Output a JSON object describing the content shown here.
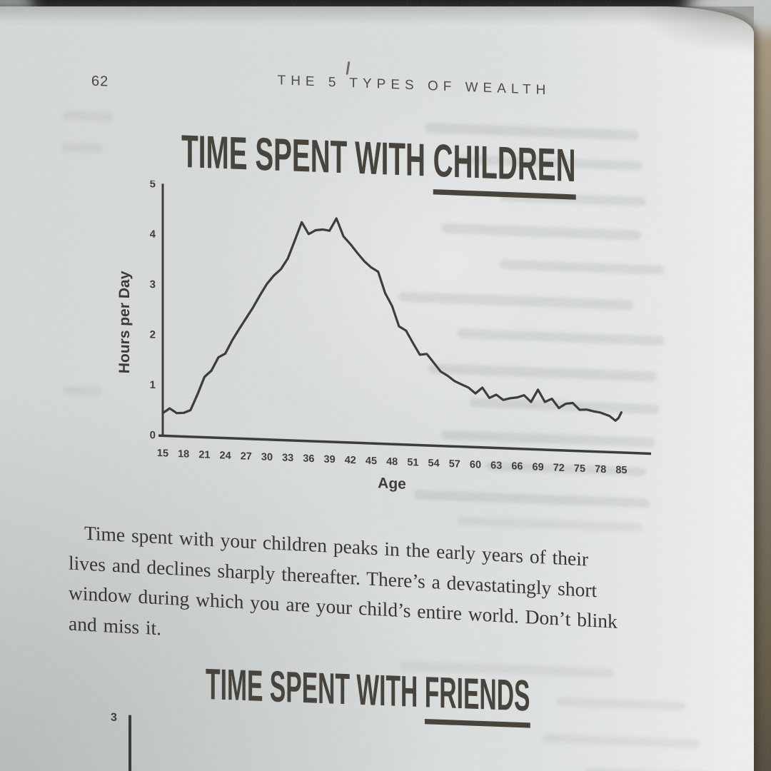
{
  "book": {
    "page_number": "62",
    "running_head": "THE 5 TYPES OF WEALTH"
  },
  "children_chart": {
    "title_prefix": "TIME SPENT WITH ",
    "title_underlined": "CHILDREN",
    "ylabel": "Hours per Day",
    "xlabel": "Age"
  },
  "paragraph": {
    "lines": [
      "Time spent with your children peaks in the early years of their",
      "lives and declines sharply thereafter. There’s a devastatingly short",
      "window during which you are your child’s entire world. Don’t blink",
      "and miss it."
    ],
    "full_text": "Time spent with your children peaks in the early years of their lives and declines sharply thereafter. There’s a devastatingly short window during which you are your child’s entire world. Don’t blink and miss it."
  },
  "friends_chart": {
    "title_prefix": "TIME SPENT WITH ",
    "title_underlined": "FRIENDS",
    "visible_ytick": "3"
  },
  "ink_color": "#35332e",
  "paper_color": "#dde1e0",
  "chart_data": [
    {
      "type": "line",
      "title": "TIME SPENT WITH CHILDREN",
      "xlabel": "Age",
      "ylabel": "Hours per Day",
      "ylim": [
        0,
        5
      ],
      "yticks": [
        0,
        1,
        2,
        3,
        4,
        5
      ],
      "xtick_labels": [
        15,
        18,
        21,
        24,
        27,
        30,
        33,
        36,
        39,
        42,
        45,
        48,
        51,
        54,
        57,
        60,
        63,
        66,
        69,
        72,
        75,
        78,
        85
      ],
      "grid": false,
      "legend": false,
      "series": [
        {
          "name": "Hours per day spent with children",
          "points": [
            [
              15,
              0.45
            ],
            [
              16,
              0.55
            ],
            [
              17,
              0.46
            ],
            [
              18,
              0.47
            ],
            [
              19,
              0.53
            ],
            [
              20,
              0.85
            ],
            [
              21,
              1.2
            ],
            [
              22,
              1.33
            ],
            [
              23,
              1.6
            ],
            [
              24,
              1.68
            ],
            [
              25,
              1.95
            ],
            [
              26,
              2.18
            ],
            [
              27,
              2.4
            ],
            [
              28,
              2.62
            ],
            [
              29,
              2.87
            ],
            [
              30,
              3.1
            ],
            [
              31,
              3.27
            ],
            [
              32,
              3.4
            ],
            [
              33,
              3.62
            ],
            [
              34,
              3.98
            ],
            [
              35,
              4.35
            ],
            [
              36,
              4.12
            ],
            [
              37,
              4.2
            ],
            [
              38,
              4.22
            ],
            [
              39,
              4.2
            ],
            [
              40,
              4.45
            ],
            [
              41,
              4.1
            ],
            [
              42,
              3.95
            ],
            [
              43,
              3.78
            ],
            [
              44,
              3.62
            ],
            [
              45,
              3.5
            ],
            [
              46,
              3.42
            ],
            [
              47,
              3.0
            ],
            [
              48,
              2.75
            ],
            [
              49,
              2.35
            ],
            [
              50,
              2.27
            ],
            [
              51,
              2.03
            ],
            [
              52,
              1.8
            ],
            [
              53,
              1.82
            ],
            [
              54,
              1.65
            ],
            [
              55,
              1.48
            ],
            [
              56,
              1.4
            ],
            [
              57,
              1.3
            ],
            [
              58,
              1.24
            ],
            [
              59,
              1.18
            ],
            [
              60,
              1.07
            ],
            [
              61,
              1.19
            ],
            [
              62,
              0.99
            ],
            [
              63,
              1.06
            ],
            [
              64,
              0.96
            ],
            [
              65,
              1.0
            ],
            [
              66,
              1.02
            ],
            [
              67,
              1.07
            ],
            [
              68,
              0.94
            ],
            [
              69,
              1.19
            ],
            [
              70,
              0.95
            ],
            [
              71,
              1.02
            ],
            [
              72,
              0.84
            ],
            [
              73,
              0.93
            ],
            [
              74,
              0.95
            ],
            [
              75,
              0.82
            ],
            [
              76,
              0.83
            ],
            [
              77,
              0.8
            ],
            [
              78,
              0.78
            ],
            [
              81,
              0.72
            ],
            [
              83,
              0.63
            ],
            [
              84,
              0.68
            ],
            [
              85,
              0.8
            ]
          ]
        }
      ]
    },
    {
      "type": "line",
      "title": "TIME SPENT WITH FRIENDS",
      "yticks_visible": [
        3
      ],
      "series": []
    }
  ]
}
